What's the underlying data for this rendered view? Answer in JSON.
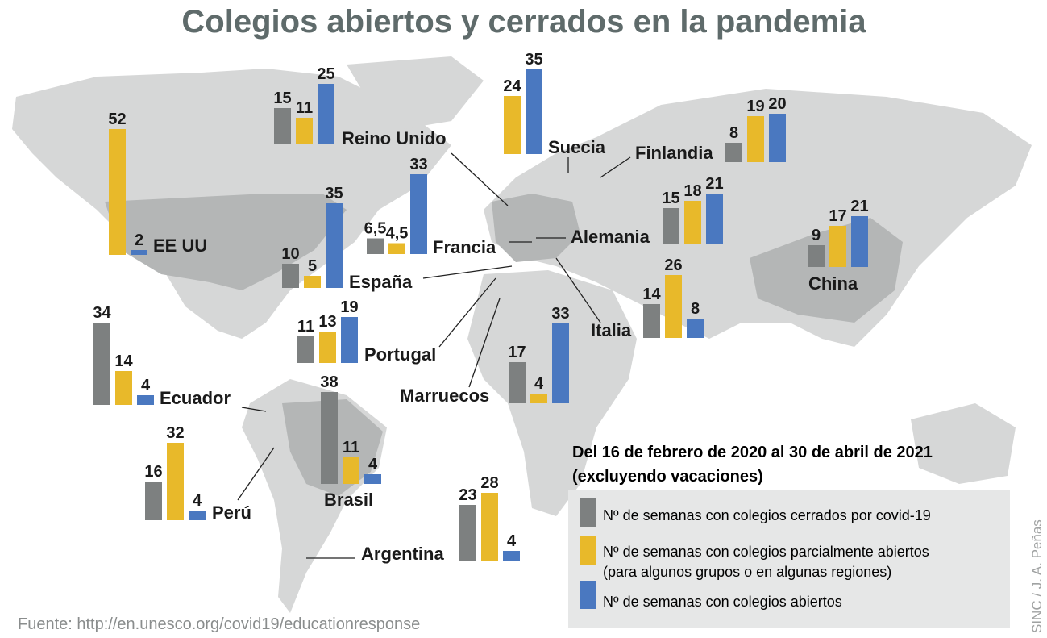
{
  "chart_data": {
    "type": "bar",
    "title": "Colegios abiertos y cerrados en la pandemia",
    "subtitle": [
      "Del 16 de febrero de 2020 al 30 de abril de 2021",
      "(excluyendo vacaciones)"
    ],
    "categories": [
      "EE UU",
      "Reino Unido",
      "Suecia",
      "Finlandia",
      "Francia",
      "Alemania",
      "España",
      "China",
      "Italia",
      "Portugal",
      "Ecuador",
      "Marruecos",
      "Brasil",
      "Perú",
      "Argentina"
    ],
    "series": [
      {
        "name": "Nº de semanas con colegios cerrados por covid-19",
        "color": "#7d8080",
        "values": [
          null,
          15,
          null,
          8,
          6.5,
          15,
          10,
          9,
          14,
          11,
          34,
          17,
          38,
          16,
          23
        ],
        "value_labels": [
          null,
          "15",
          null,
          "8",
          "6,5",
          "15",
          "10",
          "9",
          "14",
          "11",
          "34",
          "17",
          "38",
          "16",
          "23"
        ]
      },
      {
        "name": "Nº de semanas con colegios parcialmente abiertos",
        "description": "(para algunos grupos o en algunas regiones)",
        "color": "#e8b92a",
        "values": [
          52,
          11,
          24,
          19,
          4.5,
          18,
          5,
          17,
          26,
          13,
          14,
          4,
          11,
          32,
          28
        ],
        "value_labels": [
          "52",
          "11",
          "24",
          "19",
          "4,5",
          "18",
          "5",
          "17",
          "26",
          "13",
          "14",
          "4",
          "11",
          "32",
          "28"
        ]
      },
      {
        "name": "Nº de semanas con colegios abiertos",
        "color": "#4a78c0",
        "values": [
          2,
          25,
          35,
          20,
          33,
          21,
          35,
          21,
          8,
          19,
          4,
          33,
          4,
          4,
          4
        ]
      }
    ],
    "source": "Fuente: http://en.unesco.org/covid19/educationresponse",
    "credit": "SINC / J. A. Peñas"
  }
}
